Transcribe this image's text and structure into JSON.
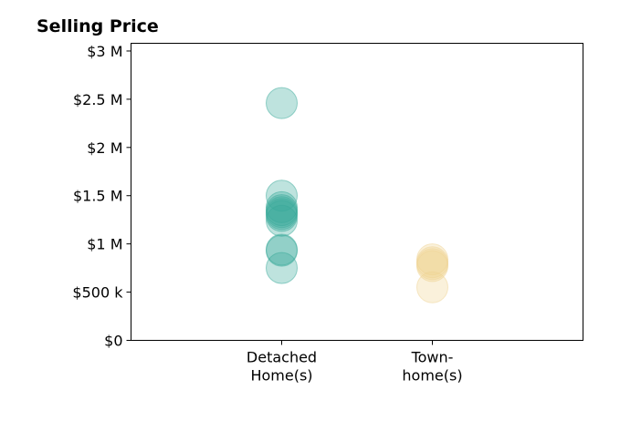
{
  "chart_data": {
    "type": "scatter",
    "title": "Selling Price",
    "xlabel": "",
    "ylabel": "",
    "categories": [
      [
        "Detached",
        "Home(s)"
      ],
      [
        "Town-",
        "home(s)"
      ]
    ],
    "y_ticks": [
      {
        "value": 0,
        "label": "$0"
      },
      {
        "value": 500000,
        "label": "$500 k"
      },
      {
        "value": 1000000,
        "label": "$1 M"
      },
      {
        "value": 1500000,
        "label": "$1.5 M"
      },
      {
        "value": 2000000,
        "label": "$2 M"
      },
      {
        "value": 2500000,
        "label": "$2.5 M"
      },
      {
        "value": 3000000,
        "label": "$3 M"
      }
    ],
    "ylim": [
      0,
      3080000
    ],
    "xlim": [
      -1,
      2
    ],
    "grid": false,
    "series": [
      {
        "category_index": 0,
        "color": "#3aa99a",
        "values": [
          2460000,
          1500000,
          1380000,
          1350000,
          1330000,
          1310000,
          1290000,
          1240000,
          940000,
          930000,
          750000
        ]
      },
      {
        "category_index": 1,
        "color": "#f0d493",
        "values": [
          840000,
          810000,
          790000,
          770000,
          550000
        ]
      }
    ]
  }
}
